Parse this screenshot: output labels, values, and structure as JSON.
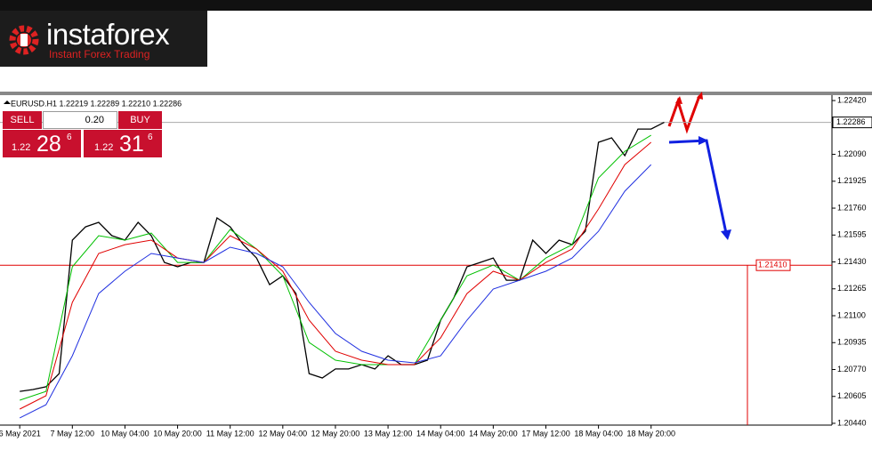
{
  "logo": {
    "name": "instaforex",
    "tagline": "Instant Forex Trading"
  },
  "trade_panel": {
    "sell": "SELL",
    "lot": "0.20",
    "buy": "BUY",
    "bid": {
      "big": "1.22",
      "mid": "28",
      "sup": "6"
    },
    "ask": {
      "big": "1.22",
      "mid": "31",
      "sup": "6"
    }
  },
  "chart_data": {
    "type": "line",
    "header": "EURUSD.H1  1.22219 1.22289 1.22210 1.22286",
    "xlim": [
      -6,
      247
    ],
    "ylim": [
      1.20429,
      1.22464
    ],
    "xticks": [
      {
        "value": 0,
        "label": "6 May 2021"
      },
      {
        "value": 16,
        "label": "7 May 12:00"
      },
      {
        "value": 32,
        "label": "10 May 04:00"
      },
      {
        "value": 48,
        "label": "10 May 20:00"
      },
      {
        "value": 64,
        "label": "11 May 12:00"
      },
      {
        "value": 80,
        "label": "12 May 04:00"
      },
      {
        "value": 96,
        "label": "12 May 20:00"
      },
      {
        "value": 112,
        "label": "13 May 12:00"
      },
      {
        "value": 128,
        "label": "14 May 04:00"
      },
      {
        "value": 144,
        "label": "14 May 20:00"
      },
      {
        "value": 160,
        "label": "17 May 12:00"
      },
      {
        "value": 176,
        "label": "18 May 04:00"
      },
      {
        "value": 192,
        "label": "18 May 20:00"
      }
    ],
    "yticks": [
      {
        "value": 1.2242,
        "label": "1.22420"
      },
      {
        "value": 1.2209,
        "label": "1.22090"
      },
      1.21925,
      {
        "value": 1.2176,
        "label": "1.21760"
      },
      1.21595,
      {
        "value": 1.2143,
        "label": "1.21430"
      },
      1.21265,
      {
        "value": 1.211,
        "label": "1.21100"
      },
      1.20935,
      {
        "value": 1.2077,
        "label": "1.20770"
      },
      1.20605,
      {
        "value": 1.2044,
        "label": "1.20440"
      }
    ],
    "last_price": 1.22286,
    "level": {
      "value": 1.2141,
      "label": "1.21410",
      "color": "#e00000"
    },
    "series": [
      {
        "color": "#000000",
        "width": 1.3,
        "x": [
          0,
          4,
          8,
          12,
          16,
          20,
          24,
          28,
          32,
          36,
          40,
          44,
          48,
          52,
          56,
          60,
          64,
          68,
          72,
          76,
          80,
          84,
          88,
          92,
          96,
          100,
          104,
          108,
          112,
          116,
          120,
          124,
          128,
          132,
          136,
          140,
          144,
          148,
          152,
          156,
          160,
          164,
          168,
          172,
          176,
          180,
          184,
          188,
          192,
          196
        ],
        "values": [
          1.20636,
          1.20647,
          1.20664,
          1.20745,
          1.21564,
          1.21645,
          1.21673,
          1.21591,
          1.21564,
          1.21673,
          1.21591,
          1.21427,
          1.214,
          1.21427,
          1.21427,
          1.217,
          1.21645,
          1.21536,
          1.21454,
          1.21291,
          1.21345,
          1.21236,
          1.20745,
          1.20718,
          1.20773,
          1.20773,
          1.208,
          1.20773,
          1.20854,
          1.208,
          1.208,
          1.20827,
          1.21073,
          1.21209,
          1.214,
          1.21427,
          1.21454,
          1.21318,
          1.21318,
          1.21564,
          1.21482,
          1.21564,
          1.21536,
          1.21618,
          1.22164,
          1.22191,
          1.22082,
          1.22245,
          1.22245,
          1.22286
        ]
      },
      {
        "color": "#00c000",
        "width": 1,
        "x": [
          0,
          8,
          16,
          24,
          32,
          40,
          48,
          56,
          64,
          72,
          80,
          88,
          96,
          104,
          112,
          120,
          128,
          136,
          144,
          152,
          160,
          168,
          176,
          184,
          192
        ],
        "values": [
          1.20582,
          1.20636,
          1.214,
          1.21591,
          1.21564,
          1.21607,
          1.21427,
          1.21427,
          1.21629,
          1.21509,
          1.21345,
          1.20936,
          1.20827,
          1.208,
          1.208,
          1.208,
          1.21073,
          1.21345,
          1.21411,
          1.21318,
          1.21454,
          1.21536,
          1.21945,
          1.22109,
          1.22207
        ]
      },
      {
        "color": "#e00000",
        "width": 1,
        "x": [
          0,
          8,
          16,
          24,
          32,
          40,
          48,
          56,
          64,
          72,
          80,
          88,
          96,
          104,
          112,
          120,
          128,
          136,
          144,
          152,
          160,
          168,
          176,
          184,
          192
        ],
        "values": [
          1.20527,
          1.20609,
          1.21182,
          1.21482,
          1.21536,
          1.21564,
          1.21454,
          1.21427,
          1.21591,
          1.21509,
          1.21373,
          1.21073,
          1.20882,
          1.20827,
          1.208,
          1.208,
          1.20964,
          1.21236,
          1.21373,
          1.21318,
          1.21427,
          1.21509,
          1.21755,
          1.22027,
          1.22164
        ]
      },
      {
        "color": "#2030e0",
        "width": 1,
        "x": [
          0,
          8,
          16,
          24,
          32,
          40,
          48,
          56,
          64,
          72,
          80,
          88,
          96,
          104,
          112,
          120,
          128,
          136,
          144,
          152,
          160,
          168,
          176,
          184,
          192
        ],
        "values": [
          1.20473,
          1.20554,
          1.20854,
          1.21236,
          1.21373,
          1.21482,
          1.21454,
          1.21427,
          1.2152,
          1.21482,
          1.214,
          1.21182,
          1.20991,
          1.20882,
          1.20827,
          1.20811,
          1.20854,
          1.21073,
          1.21264,
          1.21318,
          1.21373,
          1.21454,
          1.21618,
          1.21864,
          1.22027
        ]
      }
    ]
  }
}
